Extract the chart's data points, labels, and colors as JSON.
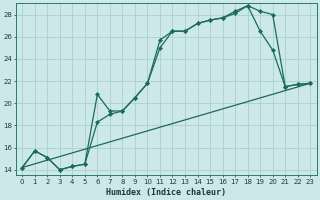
{
  "xlabel": "Humidex (Indice chaleur)",
  "bg_color": "#cce8e8",
  "grid_color": "#aacfcf",
  "line_color": "#1a6b5a",
  "xlim": [
    -0.5,
    23.5
  ],
  "ylim": [
    13.5,
    29.0
  ],
  "xticks": [
    0,
    1,
    2,
    3,
    4,
    5,
    6,
    7,
    8,
    9,
    10,
    11,
    12,
    13,
    14,
    15,
    16,
    17,
    18,
    19,
    20,
    21,
    22,
    23
  ],
  "yticks": [
    14,
    16,
    18,
    20,
    22,
    24,
    26,
    28
  ],
  "line1_x": [
    0,
    1,
    2,
    3,
    4,
    5,
    6,
    7,
    8,
    9,
    10,
    11,
    12,
    13,
    14,
    15,
    16,
    17,
    18,
    19,
    20,
    21,
    22,
    23
  ],
  "line1_y": [
    14.2,
    15.7,
    15.1,
    14.0,
    14.3,
    14.5,
    20.8,
    19.3,
    19.3,
    20.5,
    21.8,
    25.7,
    26.5,
    26.5,
    27.2,
    27.5,
    27.7,
    28.3,
    28.8,
    28.3,
    28.0,
    21.5,
    21.7,
    21.8
  ],
  "line2_x": [
    0,
    1,
    2,
    3,
    4,
    5,
    6,
    7,
    8,
    9,
    10,
    11,
    12,
    13,
    14,
    15,
    16,
    17,
    18,
    19,
    20,
    21,
    22,
    23
  ],
  "line2_y": [
    14.2,
    15.7,
    15.1,
    14.0,
    14.3,
    14.5,
    18.3,
    19.0,
    19.3,
    20.5,
    21.8,
    25.0,
    26.5,
    26.5,
    27.2,
    27.5,
    27.7,
    28.1,
    28.8,
    26.5,
    24.8,
    21.5,
    21.7,
    21.8
  ],
  "line3_x": [
    0,
    23
  ],
  "line3_y": [
    14.2,
    21.8
  ]
}
